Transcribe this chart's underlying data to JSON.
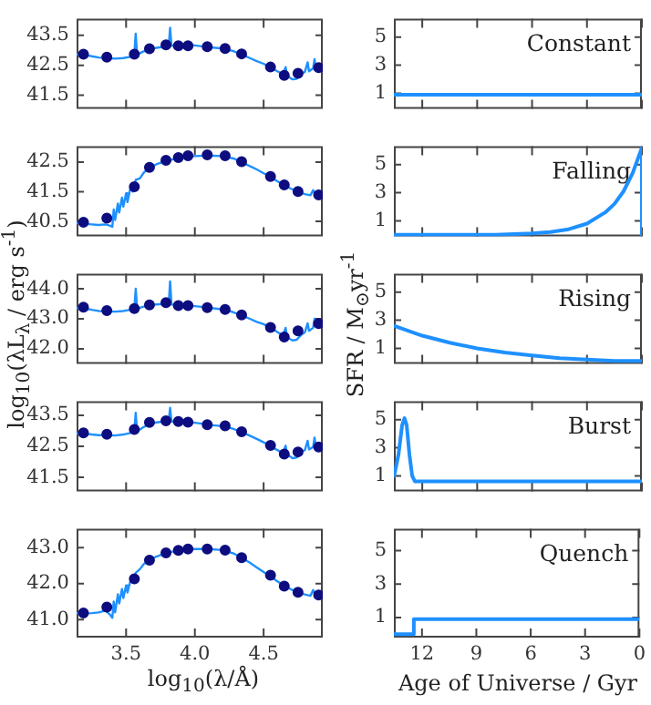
{
  "chart_data": [
    {
      "type": "line",
      "xlim": [
        3.14,
        4.93
      ],
      "xticks": [
        3.5,
        4,
        4.5
      ],
      "ylim": [
        41.05,
        44.05
      ],
      "yticks": [
        43.5,
        42.5,
        41.5
      ],
      "tick_labels": "y",
      "series": [
        {
          "type": "line",
          "color": "#1e90ff",
          "x": [
            3.14,
            3.2,
            3.25,
            3.3,
            3.36,
            3.42,
            3.48,
            3.53,
            3.56,
            3.57,
            3.58,
            3.62,
            3.67,
            3.72,
            3.78,
            3.81,
            3.82,
            3.83,
            3.88,
            3.95,
            4.0,
            4.05,
            4.1,
            4.15,
            4.22,
            4.28,
            4.34,
            4.4,
            4.45,
            4.5,
            4.55,
            4.6,
            4.64,
            4.66,
            4.67,
            4.71,
            4.74,
            4.77,
            4.8,
            4.82,
            4.83,
            4.86,
            4.87,
            4.88,
            4.93
          ],
          "values": [
            42.86,
            42.85,
            42.8,
            42.76,
            42.74,
            42.72,
            42.74,
            42.78,
            42.9,
            43.55,
            42.85,
            42.95,
            43.03,
            43.08,
            43.12,
            43.15,
            43.75,
            43.15,
            43.17,
            43.18,
            43.16,
            43.13,
            43.1,
            43.08,
            43.05,
            42.97,
            42.86,
            42.74,
            42.64,
            42.55,
            42.42,
            42.3,
            42.2,
            42.44,
            42.15,
            42.03,
            42.05,
            42.2,
            42.28,
            42.6,
            42.3,
            42.4,
            42.7,
            42.42,
            42.45
          ]
        },
        {
          "type": "scatter",
          "marker": "circle",
          "color": "#0d0d80",
          "x": [
            3.19,
            3.36,
            3.56,
            3.67,
            3.79,
            3.88,
            3.95,
            4.09,
            4.22,
            4.34,
            4.55,
            4.65,
            4.75,
            4.9
          ],
          "values": [
            42.87,
            42.77,
            42.87,
            43.05,
            43.18,
            43.15,
            43.15,
            43.12,
            43.06,
            42.88,
            42.44,
            42.16,
            42.23,
            42.42
          ]
        }
      ]
    },
    {
      "type": "line",
      "title": "Constant",
      "xlim": [
        13.55,
        0
      ],
      "xticks": [
        12,
        9,
        6,
        3,
        0
      ],
      "ylim": [
        -0.1,
        6.3
      ],
      "yticks": [
        5,
        3,
        1
      ],
      "tick_labels": "y",
      "series": [
        {
          "type": "line",
          "color": "#1e90ff",
          "x": [
            13.55,
            0
          ],
          "values": [
            0.9,
            0.9
          ]
        }
      ]
    },
    {
      "type": "line",
      "xlim": [
        3.14,
        4.93
      ],
      "xticks": [
        3.5,
        4,
        4.5
      ],
      "ylim": [
        40.0,
        43.03
      ],
      "yticks": [
        42.5,
        41.5,
        40.5
      ],
      "tick_labels": "y",
      "series": [
        {
          "type": "line",
          "color": "#1e90ff",
          "x": [
            3.14,
            3.2,
            3.25,
            3.3,
            3.35,
            3.38,
            3.4,
            3.41,
            3.42,
            3.44,
            3.45,
            3.47,
            3.48,
            3.5,
            3.51,
            3.53,
            3.55,
            3.57,
            3.6,
            3.63,
            3.67,
            3.72,
            3.78,
            3.85,
            3.92,
            4.0,
            4.1,
            4.2,
            4.28,
            4.34,
            4.4,
            4.45,
            4.5,
            4.55,
            4.6,
            4.65,
            4.7,
            4.75,
            4.8,
            4.84,
            4.86,
            4.88,
            4.93
          ],
          "values": [
            40.45,
            40.42,
            40.4,
            40.38,
            40.4,
            40.36,
            40.32,
            40.9,
            40.55,
            41.1,
            40.8,
            41.3,
            41.0,
            41.45,
            41.15,
            41.6,
            41.5,
            41.9,
            41.95,
            42.15,
            42.3,
            42.42,
            42.52,
            42.6,
            42.66,
            42.7,
            42.72,
            42.7,
            42.62,
            42.5,
            42.36,
            42.25,
            42.12,
            42.0,
            41.85,
            41.72,
            41.6,
            41.5,
            41.42,
            41.38,
            41.55,
            41.38,
            41.35
          ]
        },
        {
          "type": "scatter",
          "marker": "circle",
          "color": "#0d0d80",
          "x": [
            3.19,
            3.36,
            3.56,
            3.67,
            3.79,
            3.88,
            3.95,
            4.09,
            4.22,
            4.34,
            4.55,
            4.65,
            4.75,
            4.9
          ],
          "values": [
            40.47,
            40.61,
            41.67,
            42.32,
            42.56,
            42.65,
            42.71,
            42.74,
            42.71,
            42.51,
            42.01,
            41.73,
            41.51,
            41.39
          ]
        }
      ]
    },
    {
      "type": "line",
      "title": "Falling",
      "xlim": [
        13.55,
        0
      ],
      "xticks": [
        12,
        9,
        6,
        3,
        0
      ],
      "ylim": [
        -0.1,
        6.3
      ],
      "yticks": [
        5,
        3,
        1
      ],
      "tick_labels": "y",
      "series": [
        {
          "type": "line",
          "color": "#1e90ff",
          "x": [
            13.55,
            10,
            8,
            6,
            5,
            4,
            3,
            2,
            1.5,
            1,
            0.5,
            0,
            0
          ],
          "values": [
            0,
            0,
            0,
            0.1,
            0.2,
            0.4,
            0.8,
            1.6,
            2.2,
            3.1,
            4.4,
            6.2,
            0
          ]
        }
      ]
    },
    {
      "type": "line",
      "ylabel": "log$_{10}$(λL$_{λ}$ / erg s$^{-1}$)",
      "xlim": [
        3.14,
        4.93
      ],
      "xticks": [
        3.5,
        4,
        4.5
      ],
      "ylim": [
        41.5,
        44.5
      ],
      "yticks": [
        {
          "value": 44,
          "label": "44.0"
        },
        {
          "value": 43,
          "label": "43.0"
        },
        {
          "value": 42,
          "label": "42.0"
        }
      ],
      "tick_labels": "y",
      "series": [
        {
          "type": "line",
          "color": "#1e90ff",
          "x": [
            3.14,
            3.2,
            3.25,
            3.3,
            3.36,
            3.42,
            3.48,
            3.53,
            3.56,
            3.57,
            3.58,
            3.62,
            3.67,
            3.72,
            3.78,
            3.81,
            3.82,
            3.83,
            3.88,
            3.95,
            4.0,
            4.05,
            4.1,
            4.15,
            4.22,
            4.28,
            4.34,
            4.4,
            4.45,
            4.5,
            4.55,
            4.6,
            4.64,
            4.66,
            4.67,
            4.71,
            4.74,
            4.77,
            4.8,
            4.82,
            4.83,
            4.86,
            4.87,
            4.88,
            4.93
          ],
          "values": [
            43.36,
            43.35,
            43.3,
            43.26,
            43.25,
            43.24,
            43.26,
            43.3,
            43.36,
            44.0,
            43.33,
            43.4,
            43.45,
            43.48,
            43.5,
            43.5,
            44.25,
            43.48,
            43.46,
            43.44,
            43.42,
            43.4,
            43.37,
            43.34,
            43.3,
            43.22,
            43.12,
            43.0,
            42.9,
            42.82,
            42.7,
            42.56,
            42.44,
            42.7,
            42.38,
            42.28,
            42.3,
            42.45,
            42.55,
            42.85,
            42.6,
            42.7,
            43.0,
            42.75,
            42.8
          ]
        },
        {
          "type": "scatter",
          "marker": "circle",
          "color": "#0d0d80",
          "x": [
            3.19,
            3.36,
            3.56,
            3.67,
            3.79,
            3.88,
            3.95,
            4.09,
            4.22,
            4.34,
            4.55,
            4.65,
            4.75,
            4.9
          ],
          "values": [
            43.39,
            43.27,
            43.34,
            43.46,
            43.54,
            43.44,
            43.44,
            43.37,
            43.31,
            43.13,
            42.71,
            42.39,
            42.6,
            42.84
          ]
        }
      ]
    },
    {
      "type": "line",
      "title": "Rising",
      "ylabel": "SFR / M$_{⊙}$yr$^{-1}$",
      "xlim": [
        13.55,
        0
      ],
      "xticks": [
        12,
        9,
        6,
        3,
        0
      ],
      "ylim": [
        -0.1,
        6.3
      ],
      "yticks": [
        5,
        3,
        1
      ],
      "tick_labels": "y",
      "series": [
        {
          "type": "line",
          "color": "#1e90ff",
          "x": [
            13.55,
            12,
            10.5,
            9,
            7.5,
            6,
            4.5,
            3,
            1.5,
            0
          ],
          "values": [
            2.6,
            1.9,
            1.4,
            1.0,
            0.7,
            0.5,
            0.3,
            0.2,
            0.1,
            0.1
          ]
        }
      ]
    },
    {
      "type": "line",
      "xlim": [
        3.14,
        4.93
      ],
      "xticks": [
        3.5,
        4,
        4.5
      ],
      "ylim": [
        41.05,
        43.95
      ],
      "yticks": [
        43.5,
        42.5,
        41.5
      ],
      "tick_labels": "y",
      "series": [
        {
          "type": "line",
          "color": "#1e90ff",
          "x": [
            3.14,
            3.2,
            3.25,
            3.3,
            3.36,
            3.42,
            3.48,
            3.53,
            3.56,
            3.57,
            3.58,
            3.62,
            3.67,
            3.72,
            3.78,
            3.81,
            3.82,
            3.83,
            3.88,
            3.95,
            4.0,
            4.05,
            4.1,
            4.15,
            4.22,
            4.28,
            4.34,
            4.4,
            4.45,
            4.5,
            4.55,
            4.6,
            4.64,
            4.66,
            4.67,
            4.71,
            4.74,
            4.77,
            4.8,
            4.82,
            4.83,
            4.86,
            4.87,
            4.88,
            4.93
          ],
          "values": [
            42.92,
            42.91,
            42.88,
            42.86,
            42.86,
            42.85,
            42.88,
            42.93,
            43.0,
            43.58,
            42.98,
            43.1,
            43.22,
            43.27,
            43.3,
            43.31,
            43.74,
            43.3,
            43.3,
            43.28,
            43.26,
            43.23,
            43.19,
            43.17,
            43.14,
            43.06,
            42.96,
            42.84,
            42.74,
            42.63,
            42.5,
            42.38,
            42.28,
            42.52,
            42.24,
            42.12,
            42.14,
            42.3,
            42.38,
            42.68,
            42.4,
            42.48,
            42.78,
            42.5,
            42.5
          ]
        },
        {
          "type": "scatter",
          "marker": "circle",
          "color": "#0d0d80",
          "x": [
            3.19,
            3.36,
            3.56,
            3.67,
            3.79,
            3.88,
            3.95,
            4.09,
            4.22,
            4.34,
            4.55,
            4.65,
            4.75,
            4.9
          ],
          "values": [
            42.93,
            42.89,
            43.04,
            43.27,
            43.32,
            43.3,
            43.28,
            43.2,
            43.16,
            42.97,
            42.53,
            42.25,
            42.32,
            42.48
          ]
        }
      ]
    },
    {
      "type": "line",
      "title": "Burst",
      "xlim": [
        13.55,
        0
      ],
      "xticks": [
        12,
        9,
        6,
        3,
        0
      ],
      "ylim": [
        -0.1,
        6.3
      ],
      "yticks": [
        5,
        3,
        1
      ],
      "tick_labels": "y",
      "series": [
        {
          "type": "line",
          "color": "#1e90ff",
          "x": [
            13.55,
            13.3,
            13.1,
            12.97,
            12.85,
            12.7,
            12.55,
            12.4,
            0
          ],
          "values": [
            0.9,
            2.5,
            4.6,
            5.1,
            4.6,
            2.5,
            1.0,
            0.6,
            0.6
          ]
        }
      ]
    },
    {
      "type": "line",
      "xlabel": "log$_{10}$(λ/Å)",
      "xlim": [
        3.14,
        4.93
      ],
      "xticks": [
        3.5,
        {
          "value": 4,
          "label": "4.0"
        },
        4.5
      ],
      "ylim": [
        40.5,
        43.52
      ],
      "yticks": [
        {
          "value": 43,
          "label": "43.0"
        },
        {
          "value": 42,
          "label": "42.0"
        },
        {
          "value": 41,
          "label": "41.0"
        }
      ],
      "series": [
        {
          "type": "line",
          "color": "#1e90ff",
          "x": [
            3.14,
            3.2,
            3.25,
            3.3,
            3.35,
            3.38,
            3.4,
            3.41,
            3.42,
            3.44,
            3.45,
            3.47,
            3.48,
            3.5,
            3.51,
            3.53,
            3.55,
            3.57,
            3.6,
            3.63,
            3.67,
            3.72,
            3.78,
            3.85,
            3.92,
            4.0,
            4.1,
            4.2,
            4.28,
            4.34,
            4.4,
            4.45,
            4.5,
            4.55,
            4.6,
            4.65,
            4.7,
            4.75,
            4.8,
            4.84,
            4.86,
            4.88,
            4.93
          ],
          "values": [
            41.18,
            41.17,
            41.18,
            41.2,
            41.25,
            41.15,
            41.05,
            41.5,
            41.2,
            41.7,
            41.45,
            41.85,
            41.6,
            41.95,
            41.75,
            42.05,
            42.1,
            42.3,
            42.4,
            42.55,
            42.65,
            42.75,
            42.83,
            42.9,
            42.94,
            42.96,
            42.96,
            42.93,
            42.84,
            42.72,
            42.58,
            42.45,
            42.32,
            42.2,
            42.06,
            41.94,
            41.84,
            41.76,
            41.7,
            41.66,
            41.82,
            41.66,
            41.63
          ]
        },
        {
          "type": "scatter",
          "marker": "circle",
          "color": "#0d0d80",
          "x": [
            3.19,
            3.36,
            3.56,
            3.67,
            3.79,
            3.88,
            3.95,
            4.09,
            4.22,
            4.34,
            4.55,
            4.65,
            4.75,
            4.9
          ],
          "values": [
            41.18,
            41.35,
            42.13,
            42.65,
            42.85,
            42.92,
            42.96,
            42.96,
            42.93,
            42.72,
            42.23,
            41.93,
            41.76,
            41.68
          ]
        }
      ]
    },
    {
      "type": "line",
      "title": "Quench",
      "xlabel": "Age of Universe / Gyr",
      "xlim": [
        13.55,
        0
      ],
      "xticks": [
        12,
        9,
        6,
        3,
        0
      ],
      "ylim": [
        -0.2,
        6.3
      ],
      "yticks": [
        5,
        3,
        1
      ],
      "series": [
        {
          "type": "line",
          "color": "#1e90ff",
          "x": [
            13.55,
            12.5,
            12.45,
            0
          ],
          "values": [
            0,
            0,
            0.9,
            0.9
          ]
        }
      ]
    }
  ]
}
